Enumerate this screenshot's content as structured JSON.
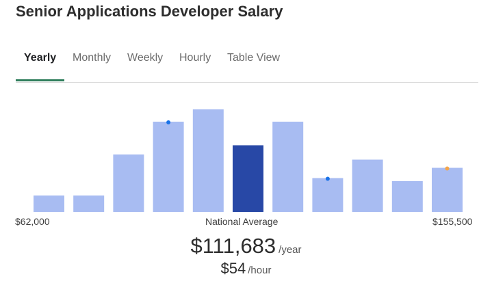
{
  "title": "Senior Applications Developer Salary",
  "tabs": [
    {
      "label": "Yearly",
      "active": true
    },
    {
      "label": "Monthly",
      "active": false
    },
    {
      "label": "Weekly",
      "active": false
    },
    {
      "label": "Hourly",
      "active": false
    },
    {
      "label": "Table View",
      "active": false
    }
  ],
  "colors": {
    "bar": "#a8bcf2",
    "bar_highlight": "#2848a6",
    "marker_blue": "#1a73e8",
    "marker_orange": "#f4a54a",
    "tab_indicator": "#2e7d5b"
  },
  "chart_data": {
    "type": "bar",
    "values": [
      16,
      16,
      56,
      88,
      100,
      65,
      88,
      33,
      51,
      30,
      43
    ],
    "highlight_index": 5,
    "markers": [
      {
        "bar_index": 3,
        "color": "blue"
      },
      {
        "bar_index": 7,
        "color": "blue"
      },
      {
        "bar_index": 10,
        "color": "orange"
      }
    ],
    "x_min_label": "$62,000",
    "x_center_label": "National Average",
    "x_max_label": "$155,500"
  },
  "salary": {
    "yearly_amount": "$111,683",
    "yearly_unit": "/year",
    "hourly_amount": "$54",
    "hourly_unit": "/hour"
  }
}
